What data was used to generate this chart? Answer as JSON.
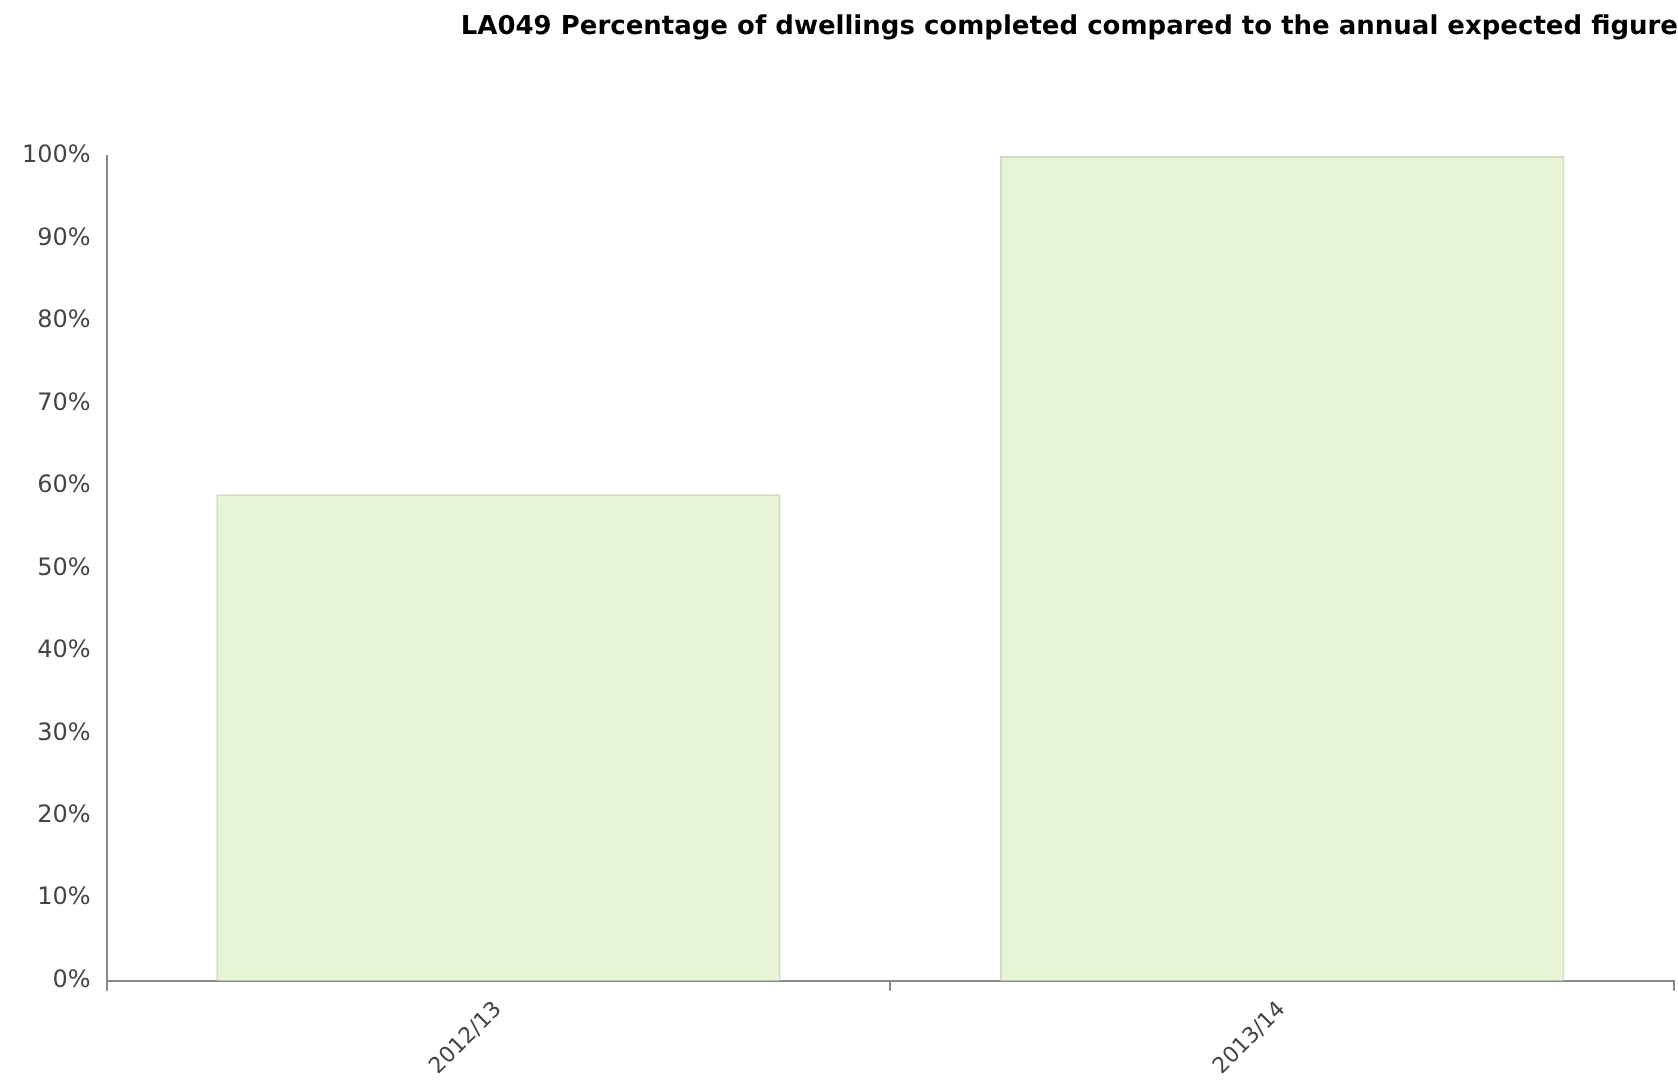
{
  "chart_data": {
    "type": "bar",
    "title": "LA049 Percentage of dwellings completed compared to the annual expected figure",
    "categories": [
      "2012/13",
      "2013/14"
    ],
    "values": [
      59,
      100
    ],
    "color": "#e8f4d6",
    "ylim": [
      0,
      100
    ],
    "yticks": [
      {
        "value": 0,
        "label": "0%"
      },
      {
        "value": 10,
        "label": "10%"
      },
      {
        "value": 20,
        "label": "20%"
      },
      {
        "value": 30,
        "label": "30%"
      },
      {
        "value": 40,
        "label": "40%"
      },
      {
        "value": 50,
        "label": "50%"
      },
      {
        "value": 60,
        "label": "60%"
      },
      {
        "value": 70,
        "label": "70%"
      },
      {
        "value": 80,
        "label": "80%"
      },
      {
        "value": 90,
        "label": "90%"
      },
      {
        "value": 100,
        "label": "100%"
      }
    ],
    "grid": false,
    "legend": false
  }
}
